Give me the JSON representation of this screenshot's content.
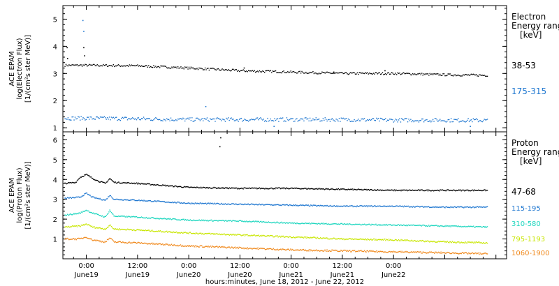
{
  "chart_data": [
    {
      "type": "scatter",
      "panel": "electron",
      "ylabel_lines": [
        "ACE EPAM",
        "log(Electron Flux)",
        "[1/(cm²s ster MeV)]"
      ],
      "legend_title": [
        "Electron",
        "Energy range",
        "[keV]"
      ],
      "ylim": [
        0.85,
        5.5
      ],
      "yticks": [
        "1",
        "2",
        "3",
        "4",
        "5"
      ],
      "xlim_hours": [
        -5.5,
        98.5
      ],
      "grid": false,
      "series": [
        {
          "name": "38-53",
          "color": "#000000",
          "points": 420,
          "noise": 0.04,
          "values_at": [
            [
              -5,
              3.3
            ],
            [
              0,
              3.3
            ],
            [
              12,
              3.28
            ],
            [
              24,
              3.2
            ],
            [
              36,
              3.1
            ],
            [
              48,
              3.05
            ],
            [
              60,
              3.0
            ],
            [
              72,
              3.0
            ],
            [
              84,
              2.95
            ],
            [
              94,
              2.93
            ]
          ],
          "spikes": [
            [
              -0.4,
              3.65
            ],
            [
              -0.6,
              3.95
            ],
            [
              -4.5,
              3.95
            ],
            [
              -4.4,
              3.55
            ],
            [
              37,
              3.2
            ],
            [
              58,
              3.05
            ],
            [
              70,
              3.1
            ]
          ]
        },
        {
          "name": "175-315",
          "color": "#1f77d0",
          "points": 420,
          "noise": 0.07,
          "values_at": [
            [
              -5,
              1.35
            ],
            [
              0,
              1.35
            ],
            [
              12,
              1.33
            ],
            [
              24,
              1.3
            ],
            [
              36,
              1.3
            ],
            [
              48,
              1.3
            ],
            [
              60,
              1.3
            ],
            [
              72,
              1.28
            ],
            [
              84,
              1.28
            ],
            [
              94,
              1.27
            ]
          ],
          "spikes": [
            [
              -0.8,
              4.95
            ],
            [
              -0.6,
              4.55
            ],
            [
              28,
              1.78
            ],
            [
              44,
              1.05
            ],
            [
              90,
              1.05
            ]
          ]
        }
      ]
    },
    {
      "type": "scatter",
      "panel": "proton",
      "ylabel_lines": [
        "ACE EPAM",
        "log(Proton Flux)",
        "[1/(cm²s ster MeV)]"
      ],
      "legend_title": [
        "Proton",
        "Energy range",
        "[keV]"
      ],
      "ylim": [
        0,
        6.4
      ],
      "yticks": [
        "1",
        "2",
        "3",
        "4",
        "5",
        "6"
      ],
      "xlim_hours": [
        -5.5,
        98.5
      ],
      "xticks": [
        "0:00",
        "12:00",
        "0:00",
        "12:00",
        "0:00",
        "12:00",
        "0:00"
      ],
      "xtick_dates": [
        "June19",
        "June19",
        "June20",
        "June20",
        "June21",
        "June21",
        "June22"
      ],
      "xtick_hours": [
        0,
        12,
        24,
        36,
        48,
        60,
        72
      ],
      "xlabel": "hours:minutes, June 18, 2012 - June 22, 2012",
      "grid": false,
      "series": [
        {
          "name": "47-68",
          "color": "#000000",
          "points": 520,
          "noise": 0.03,
          "values_at": [
            [
              -5,
              3.8
            ],
            [
              -2.5,
              3.85
            ],
            [
              -1.5,
              4.1
            ],
            [
              0,
              4.25
            ],
            [
              1.5,
              4.05
            ],
            [
              3,
              3.9
            ],
            [
              4.5,
              3.8
            ],
            [
              5.5,
              4.05
            ],
            [
              6.5,
              3.85
            ],
            [
              12,
              3.8
            ],
            [
              24,
              3.6
            ],
            [
              36,
              3.55
            ],
            [
              48,
              3.55
            ],
            [
              60,
              3.5
            ],
            [
              72,
              3.45
            ],
            [
              84,
              3.45
            ],
            [
              94,
              3.45
            ]
          ],
          "spikes": [
            [
              31.5,
              6.1
            ],
            [
              31.3,
              5.65
            ]
          ]
        },
        {
          "name": "115-195",
          "color": "#1f77d0",
          "points": 520,
          "noise": 0.03,
          "values_at": [
            [
              -5,
              3.05
            ],
            [
              -1.5,
              3.1
            ],
            [
              0,
              3.3
            ],
            [
              1.5,
              3.1
            ],
            [
              4.5,
              2.95
            ],
            [
              5.5,
              3.2
            ],
            [
              6.5,
              3.0
            ],
            [
              12,
              2.95
            ],
            [
              24,
              2.8
            ],
            [
              36,
              2.75
            ],
            [
              48,
              2.7
            ],
            [
              60,
              2.65
            ],
            [
              72,
              2.65
            ],
            [
              84,
              2.6
            ],
            [
              94,
              2.6
            ]
          ],
          "spikes": []
        },
        {
          "name": "310-580",
          "color": "#1fd6bf",
          "points": 520,
          "noise": 0.03,
          "values_at": [
            [
              -5,
              2.2
            ],
            [
              -1.5,
              2.3
            ],
            [
              0,
              2.45
            ],
            [
              1.5,
              2.3
            ],
            [
              4.5,
              2.1
            ],
            [
              5.5,
              2.45
            ],
            [
              6.5,
              2.15
            ],
            [
              12,
              2.1
            ],
            [
              24,
              1.95
            ],
            [
              36,
              1.9
            ],
            [
              48,
              1.8
            ],
            [
              60,
              1.75
            ],
            [
              72,
              1.7
            ],
            [
              84,
              1.65
            ],
            [
              94,
              1.6
            ]
          ],
          "spikes": []
        },
        {
          "name": "795-1193",
          "color": "#c8e600",
          "points": 520,
          "noise": 0.035,
          "values_at": [
            [
              -5,
              1.6
            ],
            [
              -1.5,
              1.65
            ],
            [
              0,
              1.75
            ],
            [
              1.5,
              1.6
            ],
            [
              4.5,
              1.5
            ],
            [
              5.5,
              1.7
            ],
            [
              6.5,
              1.5
            ],
            [
              12,
              1.45
            ],
            [
              24,
              1.3
            ],
            [
              36,
              1.2
            ],
            [
              48,
              1.1
            ],
            [
              60,
              1.0
            ],
            [
              72,
              0.95
            ],
            [
              84,
              0.85
            ],
            [
              94,
              0.8
            ]
          ],
          "spikes": []
        },
        {
          "name": "1060-1900",
          "color": "#f08a1e",
          "points": 520,
          "noise": 0.04,
          "values_at": [
            [
              -5,
              1.0
            ],
            [
              -1.5,
              1.0
            ],
            [
              0,
              1.1
            ],
            [
              1.5,
              0.95
            ],
            [
              4.5,
              0.85
            ],
            [
              5.5,
              1.05
            ],
            [
              6.5,
              0.85
            ],
            [
              12,
              0.8
            ],
            [
              24,
              0.65
            ],
            [
              36,
              0.55
            ],
            [
              48,
              0.45
            ],
            [
              60,
              0.4
            ],
            [
              72,
              0.35
            ],
            [
              84,
              0.3
            ],
            [
              94,
              0.25
            ]
          ],
          "spikes": []
        }
      ]
    }
  ]
}
